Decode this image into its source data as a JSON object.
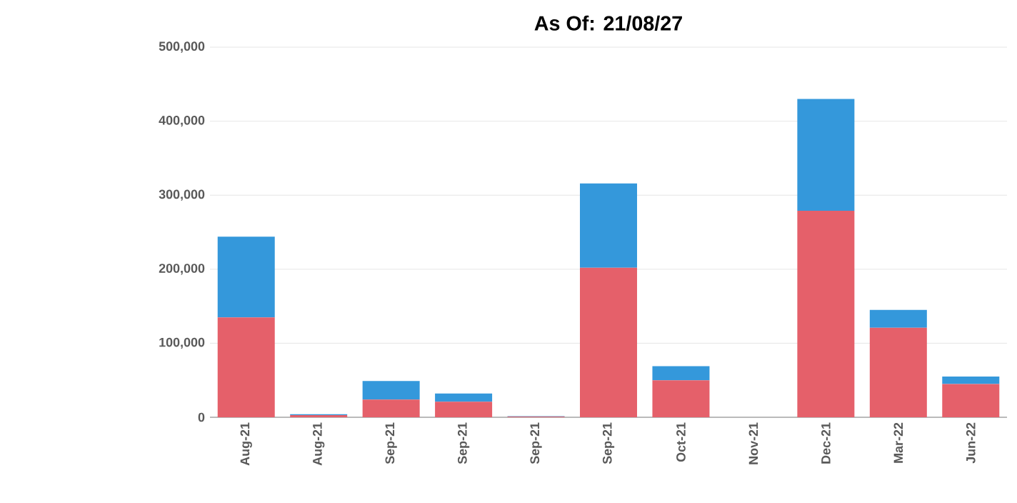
{
  "chart_data": {
    "type": "bar",
    "title": "As Of: 21/08/27",
    "stacked": true,
    "grid": "y",
    "categories": [
      "Aug-21",
      "Aug-21",
      "Sep-21",
      "Sep-21",
      "Sep-21",
      "Sep-21",
      "Oct-21",
      "Nov-21",
      "Dec-21",
      "Mar-22",
      "Jun-22"
    ],
    "series": [
      {
        "color": "#e5606a",
        "values": [
          135000,
          3000,
          24000,
          21000,
          1000,
          202000,
          50000,
          0,
          279000,
          121000,
          45000
        ]
      },
      {
        "color": "#3498db",
        "values": [
          109000,
          1000,
          25000,
          11000,
          500,
          114000,
          19000,
          0,
          151000,
          24000,
          10000
        ]
      }
    ],
    "ylim": [
      0,
      500000
    ],
    "yticks": [
      {
        "value": 0,
        "label": "0"
      },
      {
        "value": 100000,
        "label": "100,000"
      },
      {
        "value": 200000,
        "label": "200,000"
      },
      {
        "value": 300000,
        "label": "300,000"
      },
      {
        "value": 400000,
        "label": "400,000"
      },
      {
        "value": 500000,
        "label": "500,000"
      }
    ]
  }
}
